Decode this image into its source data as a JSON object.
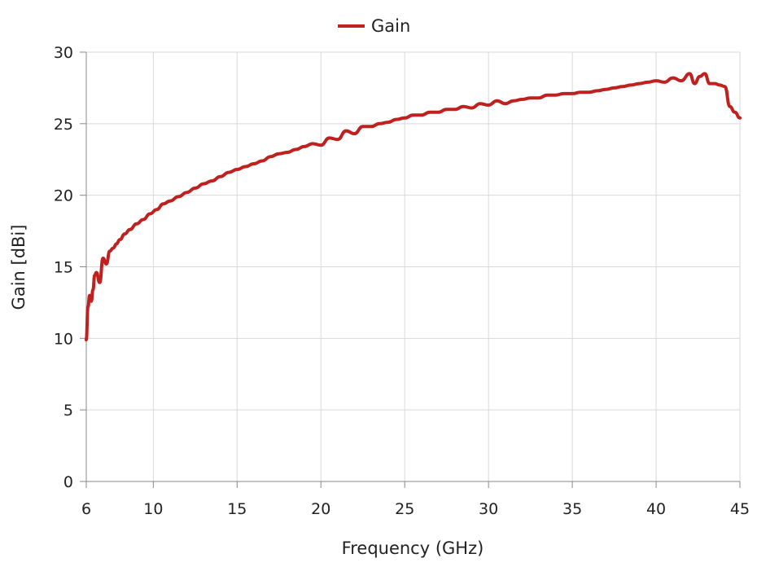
{
  "chart_data": {
    "type": "line",
    "title": "",
    "xlabel": "Frequency (GHz)",
    "ylabel": "Gain [dBi]",
    "xlim": [
      6,
      45
    ],
    "ylim": [
      0,
      30
    ],
    "xticks": [
      6,
      10,
      15,
      20,
      25,
      30,
      35,
      40,
      45
    ],
    "yticks": [
      0,
      5,
      10,
      15,
      20,
      25,
      30
    ],
    "grid": true,
    "legend_position": "top-center",
    "series": [
      {
        "name": "Gain",
        "color": "#c0201e",
        "x": [
          6.0,
          6.1,
          6.2,
          6.3,
          6.4,
          6.5,
          6.6,
          6.8,
          7.0,
          7.2,
          7.4,
          7.6,
          7.8,
          8.0,
          8.3,
          8.6,
          9.0,
          9.4,
          9.8,
          10.2,
          10.6,
          11.0,
          11.5,
          12.0,
          12.5,
          13.0,
          13.5,
          14.0,
          14.5,
          15.0,
          15.5,
          16.0,
          16.5,
          17.0,
          17.5,
          18.0,
          18.5,
          19.0,
          19.5,
          20.0,
          20.5,
          21.0,
          21.5,
          22.0,
          22.5,
          23.0,
          23.5,
          24.0,
          24.5,
          25.0,
          25.5,
          26.0,
          26.5,
          27.0,
          27.5,
          28.0,
          28.5,
          29.0,
          29.5,
          30.0,
          30.5,
          31.0,
          31.5,
          32.0,
          32.5,
          33.0,
          33.5,
          34.0,
          34.5,
          35.0,
          35.5,
          36.0,
          36.5,
          37.0,
          37.5,
          38.0,
          38.5,
          39.0,
          39.5,
          40.0,
          40.5,
          41.0,
          41.5,
          42.0,
          42.3,
          42.6,
          42.9,
          43.2,
          43.5,
          43.8,
          44.1,
          44.4,
          44.7,
          45.0
        ],
        "y": [
          9.9,
          12.2,
          13.0,
          12.6,
          13.4,
          14.4,
          14.6,
          13.9,
          15.6,
          15.2,
          16.1,
          16.3,
          16.6,
          16.9,
          17.3,
          17.6,
          18.0,
          18.3,
          18.7,
          19.0,
          19.4,
          19.6,
          19.9,
          20.2,
          20.5,
          20.8,
          21.0,
          21.3,
          21.6,
          21.8,
          22.0,
          22.2,
          22.4,
          22.7,
          22.9,
          23.0,
          23.2,
          23.4,
          23.6,
          23.5,
          24.0,
          23.9,
          24.5,
          24.3,
          24.8,
          24.8,
          25.0,
          25.1,
          25.3,
          25.4,
          25.6,
          25.6,
          25.8,
          25.8,
          26.0,
          26.0,
          26.2,
          26.1,
          26.4,
          26.3,
          26.6,
          26.4,
          26.6,
          26.7,
          26.8,
          26.8,
          27.0,
          27.0,
          27.1,
          27.1,
          27.2,
          27.2,
          27.3,
          27.4,
          27.5,
          27.6,
          27.7,
          27.8,
          27.9,
          28.0,
          27.9,
          28.2,
          28.0,
          28.5,
          27.8,
          28.3,
          28.5,
          27.8,
          27.8,
          27.7,
          27.6,
          26.2,
          25.8,
          25.4
        ]
      }
    ]
  }
}
